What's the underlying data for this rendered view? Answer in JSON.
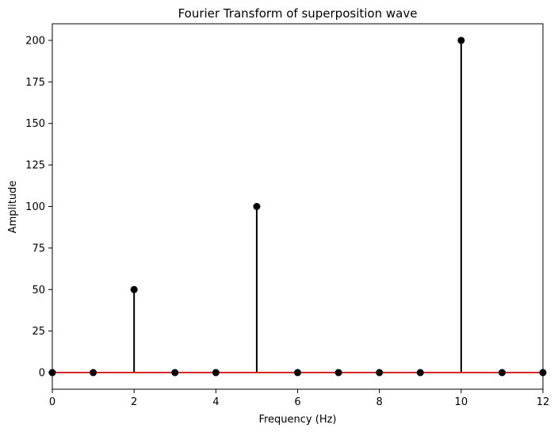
{
  "chart_data": {
    "type": "stem",
    "title": "Fourier Transform of superposition wave",
    "xlabel": "Frequency (Hz)",
    "ylabel": "Amplitude",
    "x": [
      0,
      1,
      2,
      3,
      4,
      5,
      6,
      7,
      8,
      9,
      10,
      11,
      12
    ],
    "values": [
      0,
      0,
      50,
      0,
      0,
      100,
      0,
      0,
      0,
      0,
      200,
      0,
      0
    ],
    "xlim": [
      0,
      12
    ],
    "ylim": [
      -10,
      210
    ],
    "xticks": [
      "0",
      "2",
      "4",
      "6",
      "8",
      "10",
      "12"
    ],
    "yticks": [
      "0",
      "25",
      "50",
      "75",
      "100",
      "125",
      "150",
      "175",
      "200"
    ],
    "grid": false,
    "colors": {
      "stem": "#000000",
      "marker": "#000000",
      "baseline": "#d62728"
    }
  }
}
